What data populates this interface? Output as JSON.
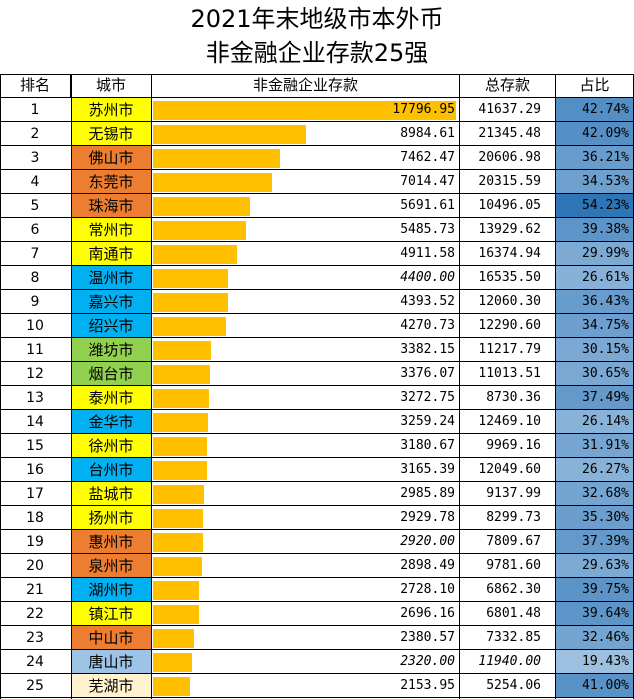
{
  "title_line1": "2021年末地级市本外币",
  "title_line2": "非金融企业存款25强",
  "headers": {
    "rank": "排名",
    "city": "城市",
    "deposit": "非金融企业存款",
    "total": "总存款",
    "share": "占比"
  },
  "colors": {
    "bar": "#ffc000",
    "city_yellow": "#ffff00",
    "city_orange": "#ed7d31",
    "city_blue": "#00b0f0",
    "city_green": "#92d050",
    "city_lightblue": "#9dc3e6",
    "city_cream": "#fff2cc",
    "share_scale_low": "#dbe9f7",
    "share_scale_high": "#2e75b6"
  },
  "chart_data": {
    "type": "table",
    "title": "2021年末地级市本外币非金融企业存款25强",
    "columns": [
      "排名",
      "城市",
      "非金融企业存款",
      "总存款",
      "占比"
    ],
    "xlim": [
      0,
      17796.95
    ],
    "rows": [
      {
        "rank": "1",
        "city": "苏州市",
        "deposit": "17796.95",
        "total": "41637.29",
        "share": "42.74%",
        "city_color": "yellow"
      },
      {
        "rank": "2",
        "city": "无锡市",
        "deposit": "8984.61",
        "total": "21345.48",
        "share": "42.09%",
        "city_color": "yellow"
      },
      {
        "rank": "3",
        "city": "佛山市",
        "deposit": "7462.47",
        "total": "20606.98",
        "share": "36.21%",
        "city_color": "orange"
      },
      {
        "rank": "4",
        "city": "东莞市",
        "deposit": "7014.47",
        "total": "20315.59",
        "share": "34.53%",
        "city_color": "orange"
      },
      {
        "rank": "5",
        "city": "珠海市",
        "deposit": "5691.61",
        "total": "10496.05",
        "share": "54.23%",
        "city_color": "orange"
      },
      {
        "rank": "6",
        "city": "常州市",
        "deposit": "5485.73",
        "total": "13929.62",
        "share": "39.38%",
        "city_color": "yellow"
      },
      {
        "rank": "7",
        "city": "南通市",
        "deposit": "4911.58",
        "total": "16374.94",
        "share": "29.99%",
        "city_color": "yellow"
      },
      {
        "rank": "8",
        "city": "温州市",
        "deposit": "4400.00",
        "total": "16535.50",
        "share": "26.61%",
        "city_color": "blue",
        "deposit_italic": true
      },
      {
        "rank": "9",
        "city": "嘉兴市",
        "deposit": "4393.52",
        "total": "12060.30",
        "share": "36.43%",
        "city_color": "blue"
      },
      {
        "rank": "10",
        "city": "绍兴市",
        "deposit": "4270.73",
        "total": "12290.60",
        "share": "34.75%",
        "city_color": "blue"
      },
      {
        "rank": "11",
        "city": "潍坊市",
        "deposit": "3382.15",
        "total": "11217.79",
        "share": "30.15%",
        "city_color": "green"
      },
      {
        "rank": "12",
        "city": "烟台市",
        "deposit": "3376.07",
        "total": "11013.51",
        "share": "30.65%",
        "city_color": "green"
      },
      {
        "rank": "13",
        "city": "泰州市",
        "deposit": "3272.75",
        "total": "8730.36",
        "share": "37.49%",
        "city_color": "yellow"
      },
      {
        "rank": "14",
        "city": "金华市",
        "deposit": "3259.24",
        "total": "12469.10",
        "share": "26.14%",
        "city_color": "blue"
      },
      {
        "rank": "15",
        "city": "徐州市",
        "deposit": "3180.67",
        "total": "9969.16",
        "share": "31.91%",
        "city_color": "yellow"
      },
      {
        "rank": "16",
        "city": "台州市",
        "deposit": "3165.39",
        "total": "12049.60",
        "share": "26.27%",
        "city_color": "blue"
      },
      {
        "rank": "17",
        "city": "盐城市",
        "deposit": "2985.89",
        "total": "9137.99",
        "share": "32.68%",
        "city_color": "yellow"
      },
      {
        "rank": "18",
        "city": "扬州市",
        "deposit": "2929.78",
        "total": "8299.73",
        "share": "35.30%",
        "city_color": "yellow"
      },
      {
        "rank": "19",
        "city": "惠州市",
        "deposit": "2920.00",
        "total": "7809.67",
        "share": "37.39%",
        "city_color": "orange",
        "deposit_italic": true
      },
      {
        "rank": "20",
        "city": "泉州市",
        "deposit": "2898.49",
        "total": "9781.60",
        "share": "29.63%",
        "city_color": "orange"
      },
      {
        "rank": "21",
        "city": "湖州市",
        "deposit": "2728.10",
        "total": "6862.30",
        "share": "39.75%",
        "city_color": "blue"
      },
      {
        "rank": "22",
        "city": "镇江市",
        "deposit": "2696.16",
        "total": "6801.48",
        "share": "39.64%",
        "city_color": "yellow"
      },
      {
        "rank": "23",
        "city": "中山市",
        "deposit": "2380.57",
        "total": "7332.85",
        "share": "32.46%",
        "city_color": "orange"
      },
      {
        "rank": "24",
        "city": "唐山市",
        "deposit": "2320.00",
        "total": "11940.00",
        "share": "19.43%",
        "city_color": "lightblue",
        "deposit_italic": true,
        "total_italic": true
      },
      {
        "rank": "25",
        "city": "芜湖市",
        "deposit": "2153.95",
        "total": "5254.06",
        "share": "41.00%",
        "city_color": "cream"
      }
    ]
  }
}
